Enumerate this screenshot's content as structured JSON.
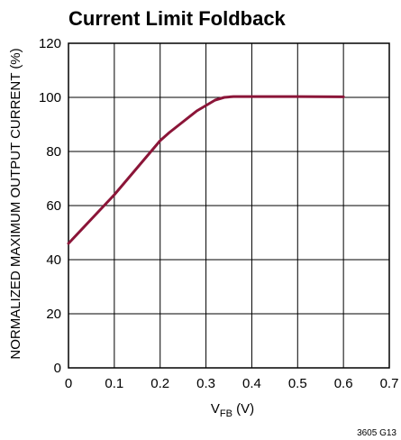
{
  "chart_data": {
    "type": "line",
    "title": "Current Limit Foldback",
    "xlabel_main": "V",
    "xlabel_sub": "FB",
    "xlabel_suffix": " (V)",
    "ylabel": "NORMALIZED MAXIMUM OUTPUT CURRENT (%)",
    "xlim": [
      0,
      0.7
    ],
    "ylim": [
      0,
      120
    ],
    "x_ticks": [
      0,
      0.1,
      0.2,
      0.3,
      0.4,
      0.5,
      0.6,
      0.7
    ],
    "x_tick_labels": [
      "0",
      "0.1",
      "0.2",
      "0.3",
      "0.4",
      "0.5",
      "0.6",
      "0.7"
    ],
    "y_ticks": [
      0,
      20,
      40,
      60,
      80,
      100,
      120
    ],
    "y_tick_labels": [
      "0",
      "20",
      "40",
      "60",
      "80",
      "100",
      "120"
    ],
    "grid": true,
    "line_color": "#8b1538",
    "series": [
      {
        "x": [
          0,
          0.05,
          0.1,
          0.15,
          0.2,
          0.22,
          0.25,
          0.28,
          0.3,
          0.32,
          0.34,
          0.36,
          0.4,
          0.5,
          0.6
        ],
        "y": [
          46,
          55,
          64,
          74,
          84,
          87,
          91,
          95,
          97,
          99,
          100,
          100.3,
          100.3,
          100.3,
          100.2
        ]
      }
    ]
  },
  "figure_id": "3605 G13"
}
